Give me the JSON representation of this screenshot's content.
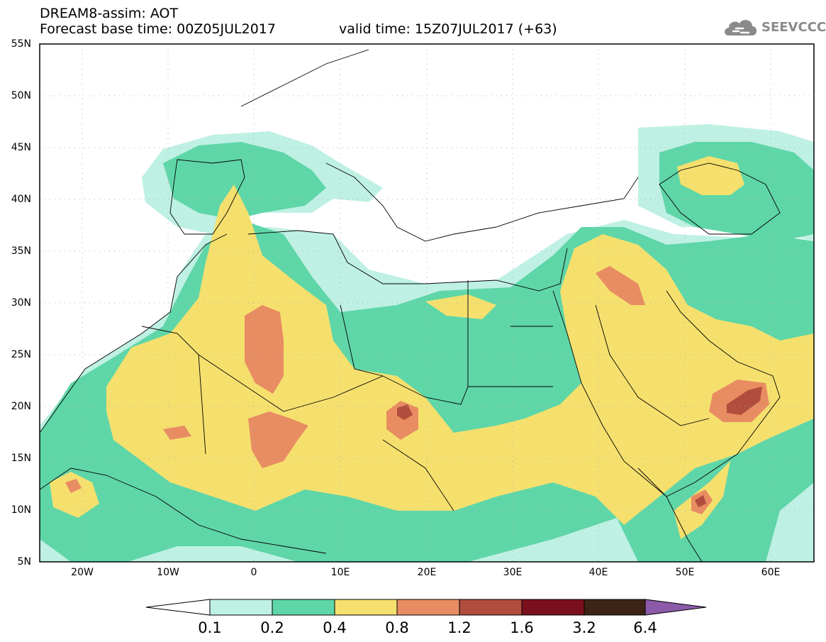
{
  "header": {
    "title": "DREAM8-assim: AOT",
    "base_time": "Forecast base time: 00Z05JUL2017",
    "valid_time": "valid time: 15Z07JUL2017 (+63)"
  },
  "logo": {
    "text": "SEEVCCC",
    "icon": "cloud-icon"
  },
  "map": {
    "lat_labels": [
      "55N",
      "50N",
      "45N",
      "40N",
      "35N",
      "30N",
      "25N",
      "20N",
      "15N",
      "10N",
      "5N"
    ],
    "lon_labels": [
      "20W",
      "10W",
      "0",
      "10E",
      "20E",
      "30E",
      "40E",
      "50E",
      "60E"
    ],
    "lat_range": [
      5,
      55
    ],
    "lon_range": [
      -25,
      65
    ]
  },
  "colorbar": {
    "labels": [
      "0.1",
      "0.2",
      "0.4",
      "0.8",
      "1.2",
      "1.6",
      "3.2",
      "6.4"
    ],
    "colors": [
      "#bff0e4",
      "#5fd6a8",
      "#f5e06e",
      "#e88c62",
      "#b04d3c",
      "#7a0f1e",
      "#3d2416",
      "#8c5aa8"
    ]
  }
}
